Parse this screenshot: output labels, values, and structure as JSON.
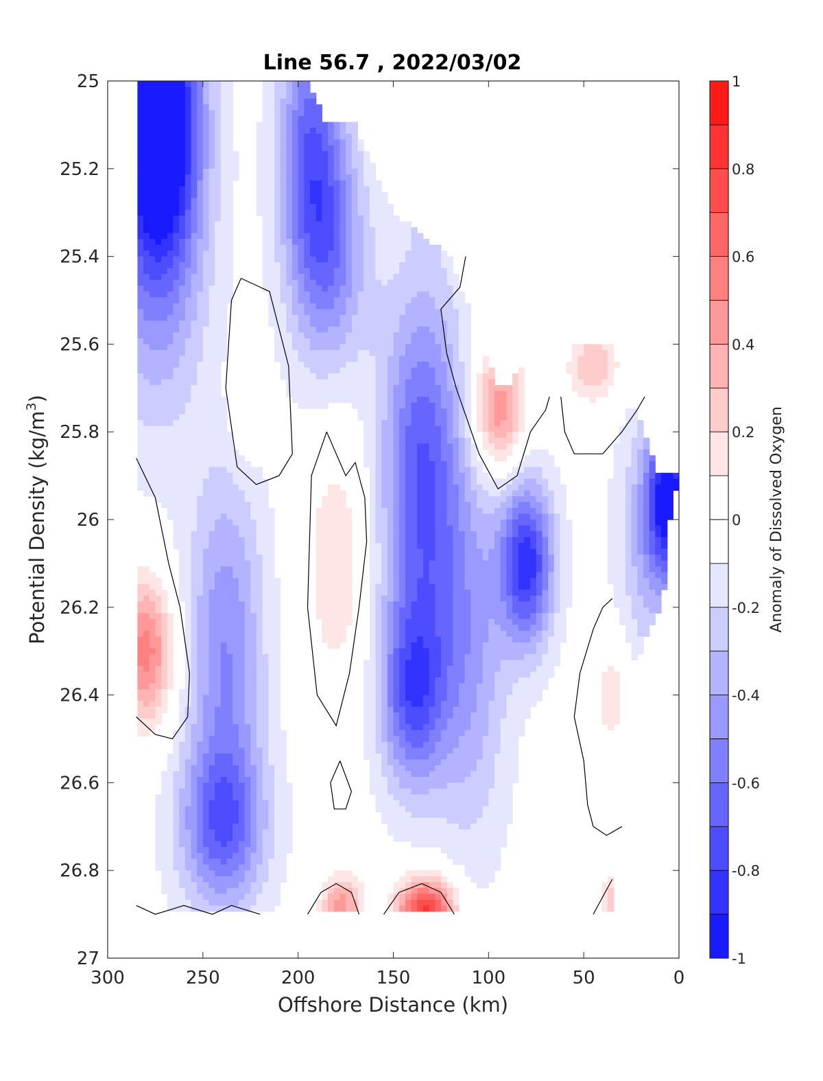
{
  "chart_data": {
    "type": "heatmap",
    "subtype": "filled contour section",
    "title": "Line 56.7 , 2022/03/02",
    "xlabel": "Offshore Distance (km)",
    "ylabel": "Potential Density (kg/m",
    "ylabel_superscript": "3",
    "ylabel_suffix": ")",
    "colorbar_label": "Anomaly of Dissolved Oxygen",
    "xlim": [
      300,
      0
    ],
    "x_reversed": true,
    "ylim": [
      25,
      27
    ],
    "y_reversed": true,
    "xticks": [
      "300",
      "250",
      "200",
      "150",
      "100",
      "50",
      "0"
    ],
    "xtick_values": [
      300,
      250,
      200,
      150,
      100,
      50,
      0
    ],
    "yticks": [
      "25",
      "25.2",
      "25.4",
      "25.6",
      "25.8",
      "26",
      "26.2",
      "26.4",
      "26.6",
      "26.8",
      "27"
    ],
    "ytick_values": [
      25,
      25.2,
      25.4,
      25.6,
      25.8,
      26,
      26.2,
      26.4,
      26.6,
      26.8,
      27
    ],
    "colorbar_ticks": [
      "1",
      "0.8",
      "0.6",
      "0.4",
      "0.2",
      "0",
      "-0.2",
      "-0.4",
      "-0.6",
      "-0.8",
      "-1"
    ],
    "colorbar_tick_values": [
      1,
      0.8,
      0.6,
      0.4,
      0.2,
      0,
      -0.2,
      -0.4,
      -0.6,
      -0.8,
      -1
    ],
    "clim": [
      -1,
      1
    ],
    "colormap_levels": 20,
    "colormap": "blue-white-red",
    "zero_contour": "black line",
    "mask_outline": [
      [
        285,
        25
      ],
      [
        270,
        25
      ],
      [
        230,
        25
      ],
      [
        195,
        25
      ],
      [
        185,
        25.1
      ],
      [
        170,
        25.1
      ],
      [
        160,
        25.2
      ],
      [
        150,
        25.3
      ],
      [
        135,
        25.35
      ],
      [
        120,
        25.4
      ],
      [
        112,
        25.5
      ],
      [
        102,
        25.6
      ],
      [
        95,
        25.7
      ],
      [
        88,
        25.7
      ],
      [
        82,
        25.6
      ],
      [
        68,
        25.6
      ],
      [
        60,
        25.6
      ],
      [
        50,
        25.6
      ],
      [
        35,
        25.6
      ],
      [
        28,
        25.7
      ],
      [
        18,
        25.8
      ],
      [
        10,
        25.9
      ],
      [
        0,
        25.9
      ],
      [
        5,
        26.0
      ],
      [
        5,
        26.1
      ],
      [
        10,
        26.2
      ],
      [
        20,
        26.3
      ],
      [
        30,
        26.4
      ],
      [
        35,
        26.6
      ],
      [
        35,
        26.75
      ],
      [
        35,
        26.9
      ],
      [
        80,
        26.9
      ],
      [
        100,
        26.9
      ],
      [
        140,
        26.9
      ],
      [
        170,
        26.9
      ],
      [
        200,
        26.9
      ],
      [
        240,
        26.9
      ],
      [
        280,
        26.9
      ],
      [
        285,
        26.9
      ]
    ],
    "anomaly_field": [
      {
        "x": 272,
        "y": 25.05,
        "sigma_x": 14,
        "sigma_y": 0.22,
        "value": -0.9
      },
      {
        "x": 275,
        "y": 25.3,
        "sigma_x": 18,
        "sigma_y": 0.3,
        "value": -0.55
      },
      {
        "x": 193,
        "y": 25.18,
        "sigma_x": 12,
        "sigma_y": 0.25,
        "value": -0.62
      },
      {
        "x": 180,
        "y": 25.4,
        "sigma_x": 13,
        "sigma_y": 0.18,
        "value": -0.35
      },
      {
        "x": 130,
        "y": 25.28,
        "sigma_x": 8,
        "sigma_y": 0.06,
        "value": -0.2
      },
      {
        "x": 280,
        "y": 26.3,
        "sigma_x": 10,
        "sigma_y": 0.12,
        "value": 0.6
      },
      {
        "x": 238,
        "y": 26.3,
        "sigma_x": 14,
        "sigma_y": 0.28,
        "value": -0.45
      },
      {
        "x": 240,
        "y": 26.7,
        "sigma_x": 16,
        "sigma_y": 0.13,
        "value": -0.55
      },
      {
        "x": 228,
        "y": 25.73,
        "sigma_x": 6,
        "sigma_y": 0.09,
        "value": 0.18
      },
      {
        "x": 180,
        "y": 26.1,
        "sigma_x": 12,
        "sigma_y": 0.2,
        "value": 0.25
      },
      {
        "x": 177,
        "y": 26.88,
        "sigma_x": 8,
        "sigma_y": 0.05,
        "value": 0.5
      },
      {
        "x": 133,
        "y": 26.9,
        "sigma_x": 11,
        "sigma_y": 0.06,
        "value": 0.9
      },
      {
        "x": 135,
        "y": 25.9,
        "sigma_x": 15,
        "sigma_y": 0.3,
        "value": -0.65
      },
      {
        "x": 140,
        "y": 26.4,
        "sigma_x": 12,
        "sigma_y": 0.15,
        "value": -0.6
      },
      {
        "x": 110,
        "y": 26.3,
        "sigma_x": 14,
        "sigma_y": 0.3,
        "value": -0.35
      },
      {
        "x": 80,
        "y": 26.1,
        "sigma_x": 10,
        "sigma_y": 0.13,
        "value": -0.8
      },
      {
        "x": 95,
        "y": 25.75,
        "sigma_x": 10,
        "sigma_y": 0.1,
        "value": 0.55
      },
      {
        "x": 45,
        "y": 25.65,
        "sigma_x": 10,
        "sigma_y": 0.06,
        "value": 0.35
      },
      {
        "x": 35,
        "y": 26.4,
        "sigma_x": 7,
        "sigma_y": 0.1,
        "value": 0.22
      },
      {
        "x": 35,
        "y": 26.88,
        "sigma_x": 5,
        "sigma_y": 0.05,
        "value": 0.35
      },
      {
        "x": 5,
        "y": 25.95,
        "sigma_x": 8,
        "sigma_y": 0.12,
        "value": -0.85
      },
      {
        "x": 15,
        "y": 26.05,
        "sigma_x": 12,
        "sigma_y": 0.2,
        "value": -0.3
      }
    ],
    "zero_contours": [
      [
        [
          230,
          25.45
        ],
        [
          215,
          25.48
        ],
        [
          205,
          25.65
        ],
        [
          203,
          25.85
        ],
        [
          210,
          25.9
        ],
        [
          222,
          25.92
        ],
        [
          232,
          25.88
        ],
        [
          238,
          25.7
        ],
        [
          235,
          25.5
        ],
        [
          230,
          25.45
        ]
      ],
      [
        [
          185,
          25.8
        ],
        [
          193,
          25.9
        ],
        [
          195,
          26.2
        ],
        [
          190,
          26.4
        ],
        [
          180,
          26.47
        ],
        [
          173,
          26.35
        ],
        [
          168,
          26.2
        ],
        [
          164,
          26.05
        ],
        [
          165,
          25.95
        ],
        [
          170,
          25.87
        ],
        [
          175,
          25.9
        ],
        [
          180,
          25.85
        ],
        [
          185,
          25.8
        ]
      ],
      [
        [
          285,
          25.86
        ],
        [
          275,
          25.95
        ],
        [
          268,
          26.1
        ],
        [
          262,
          26.2
        ],
        [
          257,
          26.35
        ],
        [
          258,
          26.45
        ],
        [
          266,
          26.5
        ],
        [
          275,
          26.49
        ],
        [
          285,
          26.45
        ]
      ],
      [
        [
          112,
          25.4
        ],
        [
          115,
          25.47
        ],
        [
          125,
          25.52
        ],
        [
          122,
          25.62
        ],
        [
          117,
          25.7
        ],
        [
          105,
          25.85
        ],
        [
          95,
          25.93
        ],
        [
          85,
          25.9
        ],
        [
          78,
          25.8
        ],
        [
          70,
          25.75
        ],
        [
          68,
          25.72
        ]
      ],
      [
        [
          62,
          25.72
        ],
        [
          60,
          25.8
        ],
        [
          55,
          25.85
        ],
        [
          40,
          25.85
        ],
        [
          30,
          25.8
        ],
        [
          22,
          25.75
        ],
        [
          18,
          25.72
        ]
      ],
      [
        [
          35,
          26.18
        ],
        [
          40,
          26.2
        ],
        [
          45,
          26.25
        ],
        [
          52,
          26.35
        ],
        [
          55,
          26.45
        ],
        [
          50,
          26.55
        ],
        [
          48,
          26.65
        ],
        [
          45,
          26.7
        ],
        [
          38,
          26.72
        ],
        [
          30,
          26.7
        ]
      ],
      [
        [
          35,
          26.82
        ],
        [
          40,
          26.86
        ],
        [
          45,
          26.9
        ]
      ],
      [
        [
          178,
          26.55
        ],
        [
          172,
          26.62
        ],
        [
          175,
          26.66
        ],
        [
          181,
          26.66
        ],
        [
          183,
          26.6
        ],
        [
          178,
          26.55
        ]
      ],
      [
        [
          195,
          26.9
        ],
        [
          188,
          26.85
        ],
        [
          180,
          26.83
        ],
        [
          172,
          26.85
        ],
        [
          168,
          26.9
        ]
      ],
      [
        [
          155,
          26.9
        ],
        [
          147,
          26.85
        ],
        [
          135,
          26.83
        ],
        [
          125,
          26.85
        ],
        [
          118,
          26.9
        ]
      ],
      [
        [
          285,
          26.88
        ],
        [
          275,
          26.9
        ],
        [
          260,
          26.88
        ],
        [
          245,
          26.9
        ],
        [
          235,
          26.88
        ],
        [
          220,
          26.9
        ]
      ]
    ]
  }
}
